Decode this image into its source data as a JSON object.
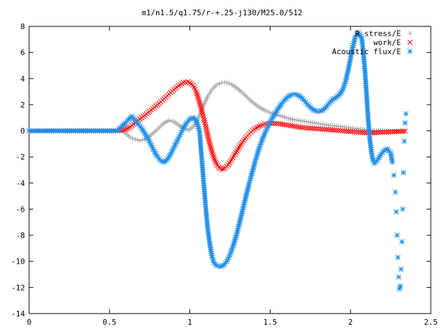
{
  "chart_data": {
    "type": "scatter",
    "title": "m1/n1.5/q1.75/r-+.25-j130/M25.0/512",
    "xlabel": "",
    "ylabel": "",
    "xlim": [
      0,
      2.5
    ],
    "ylim": [
      -14,
      8
    ],
    "xticks": [
      "0",
      "0.5",
      "1",
      "1.5",
      "2",
      "2.5"
    ],
    "yticks": [
      "-14",
      "-12",
      "-10",
      "-8",
      "-6",
      "-4",
      "-2",
      "0",
      "2",
      "4",
      "6",
      "8"
    ],
    "grid": false,
    "legend_position": "top-right",
    "series": [
      {
        "name": "R stress/E",
        "color": "#a0a0a0",
        "marker": "plus",
        "points": [
          [
            0.0,
            0
          ],
          [
            0.05,
            0
          ],
          [
            0.1,
            0
          ],
          [
            0.15,
            0
          ],
          [
            0.2,
            0
          ],
          [
            0.25,
            0
          ],
          [
            0.3,
            0
          ],
          [
            0.35,
            0
          ],
          [
            0.4,
            0
          ],
          [
            0.45,
            0
          ],
          [
            0.5,
            0
          ],
          [
            0.55,
            0
          ],
          [
            0.58,
            0
          ],
          [
            0.6,
            -0.2
          ],
          [
            0.63,
            -0.5
          ],
          [
            0.66,
            -0.65
          ],
          [
            0.69,
            -0.75
          ],
          [
            0.72,
            -0.65
          ],
          [
            0.75,
            -0.4
          ],
          [
            0.78,
            -0.1
          ],
          [
            0.81,
            0.25
          ],
          [
            0.84,
            0.6
          ],
          [
            0.87,
            0.8
          ],
          [
            0.9,
            0.7
          ],
          [
            0.93,
            0.45
          ],
          [
            0.96,
            0.2
          ],
          [
            0.99,
            0.05
          ],
          [
            1.02,
            0.3
          ],
          [
            1.05,
            0.9
          ],
          [
            1.08,
            1.8
          ],
          [
            1.11,
            2.6
          ],
          [
            1.14,
            3.2
          ],
          [
            1.17,
            3.55
          ],
          [
            1.2,
            3.7
          ],
          [
            1.23,
            3.7
          ],
          [
            1.26,
            3.55
          ],
          [
            1.29,
            3.3
          ],
          [
            1.32,
            3.0
          ],
          [
            1.35,
            2.65
          ],
          [
            1.38,
            2.3
          ],
          [
            1.41,
            2.0
          ],
          [
            1.44,
            1.75
          ],
          [
            1.47,
            1.55
          ],
          [
            1.5,
            1.4
          ],
          [
            1.55,
            1.2
          ],
          [
            1.6,
            1.0
          ],
          [
            1.65,
            0.85
          ],
          [
            1.7,
            0.75
          ],
          [
            1.75,
            0.65
          ],
          [
            1.8,
            0.55
          ],
          [
            1.85,
            0.45
          ],
          [
            1.9,
            0.38
          ],
          [
            1.95,
            0.3
          ],
          [
            2.0,
            0.22
          ],
          [
            2.05,
            0.15
          ],
          [
            2.1,
            0.08
          ],
          [
            2.15,
            0.03
          ],
          [
            2.2,
            0.0
          ],
          [
            2.25,
            -0.02
          ],
          [
            2.3,
            -0.03
          ],
          [
            2.34,
            -0.02
          ]
        ]
      },
      {
        "name": "work/E",
        "color": "#ff0000",
        "marker": "cross",
        "points": [
          [
            0.0,
            0
          ],
          [
            0.1,
            0
          ],
          [
            0.2,
            0
          ],
          [
            0.3,
            0
          ],
          [
            0.4,
            0
          ],
          [
            0.5,
            0
          ],
          [
            0.55,
            0
          ],
          [
            0.6,
            0.1
          ],
          [
            0.63,
            0.3
          ],
          [
            0.66,
            0.6
          ],
          [
            0.69,
            0.9
          ],
          [
            0.72,
            1.2
          ],
          [
            0.75,
            1.5
          ],
          [
            0.78,
            1.8
          ],
          [
            0.81,
            2.1
          ],
          [
            0.84,
            2.45
          ],
          [
            0.87,
            2.8
          ],
          [
            0.9,
            3.15
          ],
          [
            0.93,
            3.45
          ],
          [
            0.96,
            3.7
          ],
          [
            0.99,
            3.75
          ],
          [
            1.02,
            3.5
          ],
          [
            1.04,
            3.0
          ],
          [
            1.06,
            2.2
          ],
          [
            1.08,
            1.3
          ],
          [
            1.1,
            0.3
          ],
          [
            1.12,
            -0.8
          ],
          [
            1.14,
            -1.7
          ],
          [
            1.16,
            -2.4
          ],
          [
            1.18,
            -2.8
          ],
          [
            1.2,
            -2.95
          ],
          [
            1.22,
            -2.85
          ],
          [
            1.24,
            -2.6
          ],
          [
            1.26,
            -2.2
          ],
          [
            1.28,
            -1.8
          ],
          [
            1.3,
            -1.4
          ],
          [
            1.32,
            -1.0
          ],
          [
            1.35,
            -0.5
          ],
          [
            1.38,
            -0.1
          ],
          [
            1.41,
            0.2
          ],
          [
            1.44,
            0.4
          ],
          [
            1.47,
            0.52
          ],
          [
            1.5,
            0.58
          ],
          [
            1.55,
            0.55
          ],
          [
            1.6,
            0.45
          ],
          [
            1.65,
            0.35
          ],
          [
            1.7,
            0.25
          ],
          [
            1.75,
            0.2
          ],
          [
            1.8,
            0.15
          ],
          [
            1.85,
            0.1
          ],
          [
            1.9,
            0.05
          ],
          [
            1.95,
            0.0
          ],
          [
            2.0,
            -0.05
          ],
          [
            2.05,
            -0.1
          ],
          [
            2.1,
            -0.15
          ],
          [
            2.15,
            -0.15
          ],
          [
            2.2,
            -0.1
          ],
          [
            2.25,
            -0.08
          ],
          [
            2.3,
            -0.05
          ],
          [
            2.34,
            -0.02
          ]
        ]
      },
      {
        "name": "Acoustic flux/E",
        "color": "#1e8ee8",
        "marker": "star",
        "points": [
          [
            0.0,
            0
          ],
          [
            0.05,
            0
          ],
          [
            0.1,
            0
          ],
          [
            0.15,
            0
          ],
          [
            0.2,
            0
          ],
          [
            0.25,
            0
          ],
          [
            0.3,
            0
          ],
          [
            0.35,
            0
          ],
          [
            0.4,
            0
          ],
          [
            0.45,
            0
          ],
          [
            0.5,
            0
          ],
          [
            0.55,
            0
          ],
          [
            0.58,
            0.4
          ],
          [
            0.6,
            0.6
          ],
          [
            0.62,
            0.9
          ],
          [
            0.64,
            1.1
          ],
          [
            0.66,
            0.8
          ],
          [
            0.68,
            0.5
          ],
          [
            0.7,
            0.2
          ],
          [
            0.72,
            -0.2
          ],
          [
            0.74,
            -0.6
          ],
          [
            0.76,
            -1.1
          ],
          [
            0.78,
            -1.6
          ],
          [
            0.8,
            -2.0
          ],
          [
            0.82,
            -2.3
          ],
          [
            0.84,
            -2.4
          ],
          [
            0.86,
            -2.2
          ],
          [
            0.88,
            -1.8
          ],
          [
            0.9,
            -1.3
          ],
          [
            0.92,
            -0.8
          ],
          [
            0.94,
            -0.3
          ],
          [
            0.96,
            0.2
          ],
          [
            0.98,
            0.6
          ],
          [
            1.0,
            0.9
          ],
          [
            1.02,
            1.0
          ],
          [
            1.04,
            0.8
          ],
          [
            1.06,
            0.0
          ],
          [
            1.07,
            -1.5
          ],
          [
            1.08,
            -3.0
          ],
          [
            1.09,
            -4.5
          ],
          [
            1.1,
            -6.0
          ],
          [
            1.11,
            -7.3
          ],
          [
            1.12,
            -8.3
          ],
          [
            1.13,
            -9.1
          ],
          [
            1.14,
            -9.7
          ],
          [
            1.15,
            -10.1
          ],
          [
            1.17,
            -10.35
          ],
          [
            1.19,
            -10.4
          ],
          [
            1.21,
            -10.3
          ],
          [
            1.23,
            -10.0
          ],
          [
            1.25,
            -9.5
          ],
          [
            1.27,
            -8.8
          ],
          [
            1.29,
            -8.0
          ],
          [
            1.31,
            -7.0
          ],
          [
            1.33,
            -6.0
          ],
          [
            1.35,
            -5.0
          ],
          [
            1.37,
            -4.0
          ],
          [
            1.39,
            -3.1
          ],
          [
            1.41,
            -2.2
          ],
          [
            1.43,
            -1.4
          ],
          [
            1.45,
            -0.7
          ],
          [
            1.47,
            -0.1
          ],
          [
            1.49,
            0.4
          ],
          [
            1.51,
            0.9
          ],
          [
            1.53,
            1.3
          ],
          [
            1.55,
            1.7
          ],
          [
            1.57,
            2.05
          ],
          [
            1.59,
            2.35
          ],
          [
            1.61,
            2.6
          ],
          [
            1.63,
            2.75
          ],
          [
            1.65,
            2.8
          ],
          [
            1.67,
            2.75
          ],
          [
            1.69,
            2.6
          ],
          [
            1.71,
            2.35
          ],
          [
            1.73,
            2.05
          ],
          [
            1.75,
            1.8
          ],
          [
            1.77,
            1.6
          ],
          [
            1.79,
            1.5
          ],
          [
            1.81,
            1.5
          ],
          [
            1.83,
            1.6
          ],
          [
            1.85,
            1.85
          ],
          [
            1.87,
            2.15
          ],
          [
            1.89,
            2.4
          ],
          [
            1.91,
            2.55
          ],
          [
            1.93,
            2.75
          ],
          [
            1.95,
            3.1
          ],
          [
            1.97,
            3.8
          ],
          [
            1.99,
            4.9
          ],
          [
            2.01,
            6.2
          ],
          [
            2.03,
            7.2
          ],
          [
            2.05,
            7.5
          ],
          [
            2.07,
            7.1
          ],
          [
            2.08,
            6.0
          ],
          [
            2.09,
            4.6
          ],
          [
            2.1,
            2.8
          ],
          [
            2.11,
            0.9
          ],
          [
            2.12,
            -0.6
          ],
          [
            2.13,
            -1.6
          ],
          [
            2.14,
            -2.3
          ],
          [
            2.15,
            -2.5
          ],
          [
            2.17,
            -2.2
          ],
          [
            2.19,
            -1.8
          ],
          [
            2.21,
            -1.5
          ],
          [
            2.23,
            -1.4
          ],
          [
            2.25,
            -1.7
          ],
          [
            2.26,
            -2.4
          ],
          [
            2.27,
            -3.4
          ],
          [
            2.28,
            -4.7
          ],
          [
            2.285,
            -6.2
          ],
          [
            2.29,
            -8.0
          ],
          [
            2.295,
            -9.7
          ],
          [
            2.3,
            -11.2
          ],
          [
            2.305,
            -12.1
          ],
          [
            2.31,
            -11.9
          ],
          [
            2.315,
            -10.6
          ],
          [
            2.32,
            -8.5
          ],
          [
            2.325,
            -6.0
          ],
          [
            2.33,
            -3.2
          ],
          [
            2.335,
            -0.8
          ],
          [
            2.34,
            0.6
          ],
          [
            2.345,
            1.3
          ]
        ]
      }
    ]
  }
}
